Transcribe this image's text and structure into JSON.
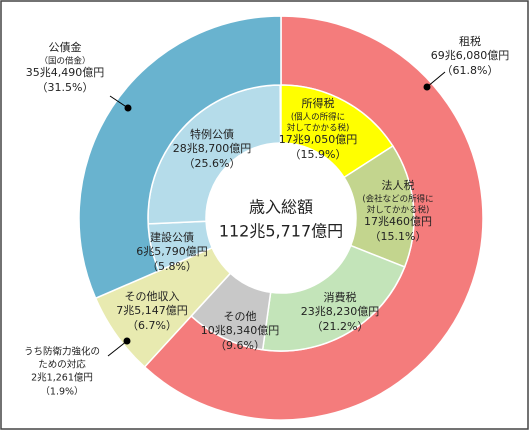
{
  "chart_data": {
    "type": "donut",
    "center_title": "歳入総額",
    "total": 1125717,
    "total_label": "112兆5,717億円",
    "segments": [
      {
        "name": "租税",
        "ring": "outer",
        "amount": 696080,
        "amount_label": "69兆6,080億円",
        "value": 61.8,
        "value_label": "（61.8%）",
        "color": "#F47C7C"
      },
      {
        "name": "所得税",
        "ring": "inner",
        "note": [
          "(個人の所得に",
          "対してかかる税)"
        ],
        "amount": 179050,
        "amount_label": "17兆9,050億円",
        "value": 15.9,
        "value_label": "（15.9%）",
        "color": "#FFFF00"
      },
      {
        "name": "法人税",
        "ring": "inner",
        "note": [
          "(会社などの所得に",
          "対してかかる税)"
        ],
        "amount": 170460,
        "amount_label": "17兆460億円",
        "value": 15.1,
        "value_label": "（15.1%）",
        "color": "#C3D58E"
      },
      {
        "name": "消費税",
        "ring": "inner",
        "amount": 238230,
        "amount_label": "23兆8,230億円",
        "value": 21.2,
        "value_label": "（21.2%）",
        "color": "#C3E4B9"
      },
      {
        "name": "その他",
        "ring": "inner",
        "amount": 108340,
        "amount_label": "10兆8,340億円",
        "value": 9.6,
        "value_label": "（9.6%）",
        "color": "#C8C8C8"
      },
      {
        "name": "その他収入",
        "ring": "full",
        "amount": 75147,
        "amount_label": "7兆5,147億円",
        "value": 6.7,
        "value_label": "（6.7%）",
        "color": "#E8EAB0",
        "breakdown": {
          "label": [
            "うち防衛力強化の",
            "ための対応"
          ],
          "amount": 21261,
          "amount_label": "2兆1,261億円",
          "value": 1.9,
          "value_label": "（1.9%）"
        }
      },
      {
        "name": "建設公債",
        "ring": "inner",
        "amount": 65790,
        "amount_label": "6兆5,790億円",
        "value": 5.8,
        "value_label": "（5.8%）",
        "color": "#B5DCEA"
      },
      {
        "name": "特例公債",
        "ring": "inner",
        "amount": 288700,
        "amount_label": "28兆8,700億円",
        "value": 25.6,
        "value_label": "（25.6%）",
        "color": "#B5DCEA"
      },
      {
        "name": "公債金",
        "ring": "outer",
        "note": [
          "（国の借金）"
        ],
        "amount": 354490,
        "amount_label": "35兆4,490億円",
        "value": 31.5,
        "value_label": "（31.5%）",
        "color": "#69B3CF"
      }
    ]
  }
}
